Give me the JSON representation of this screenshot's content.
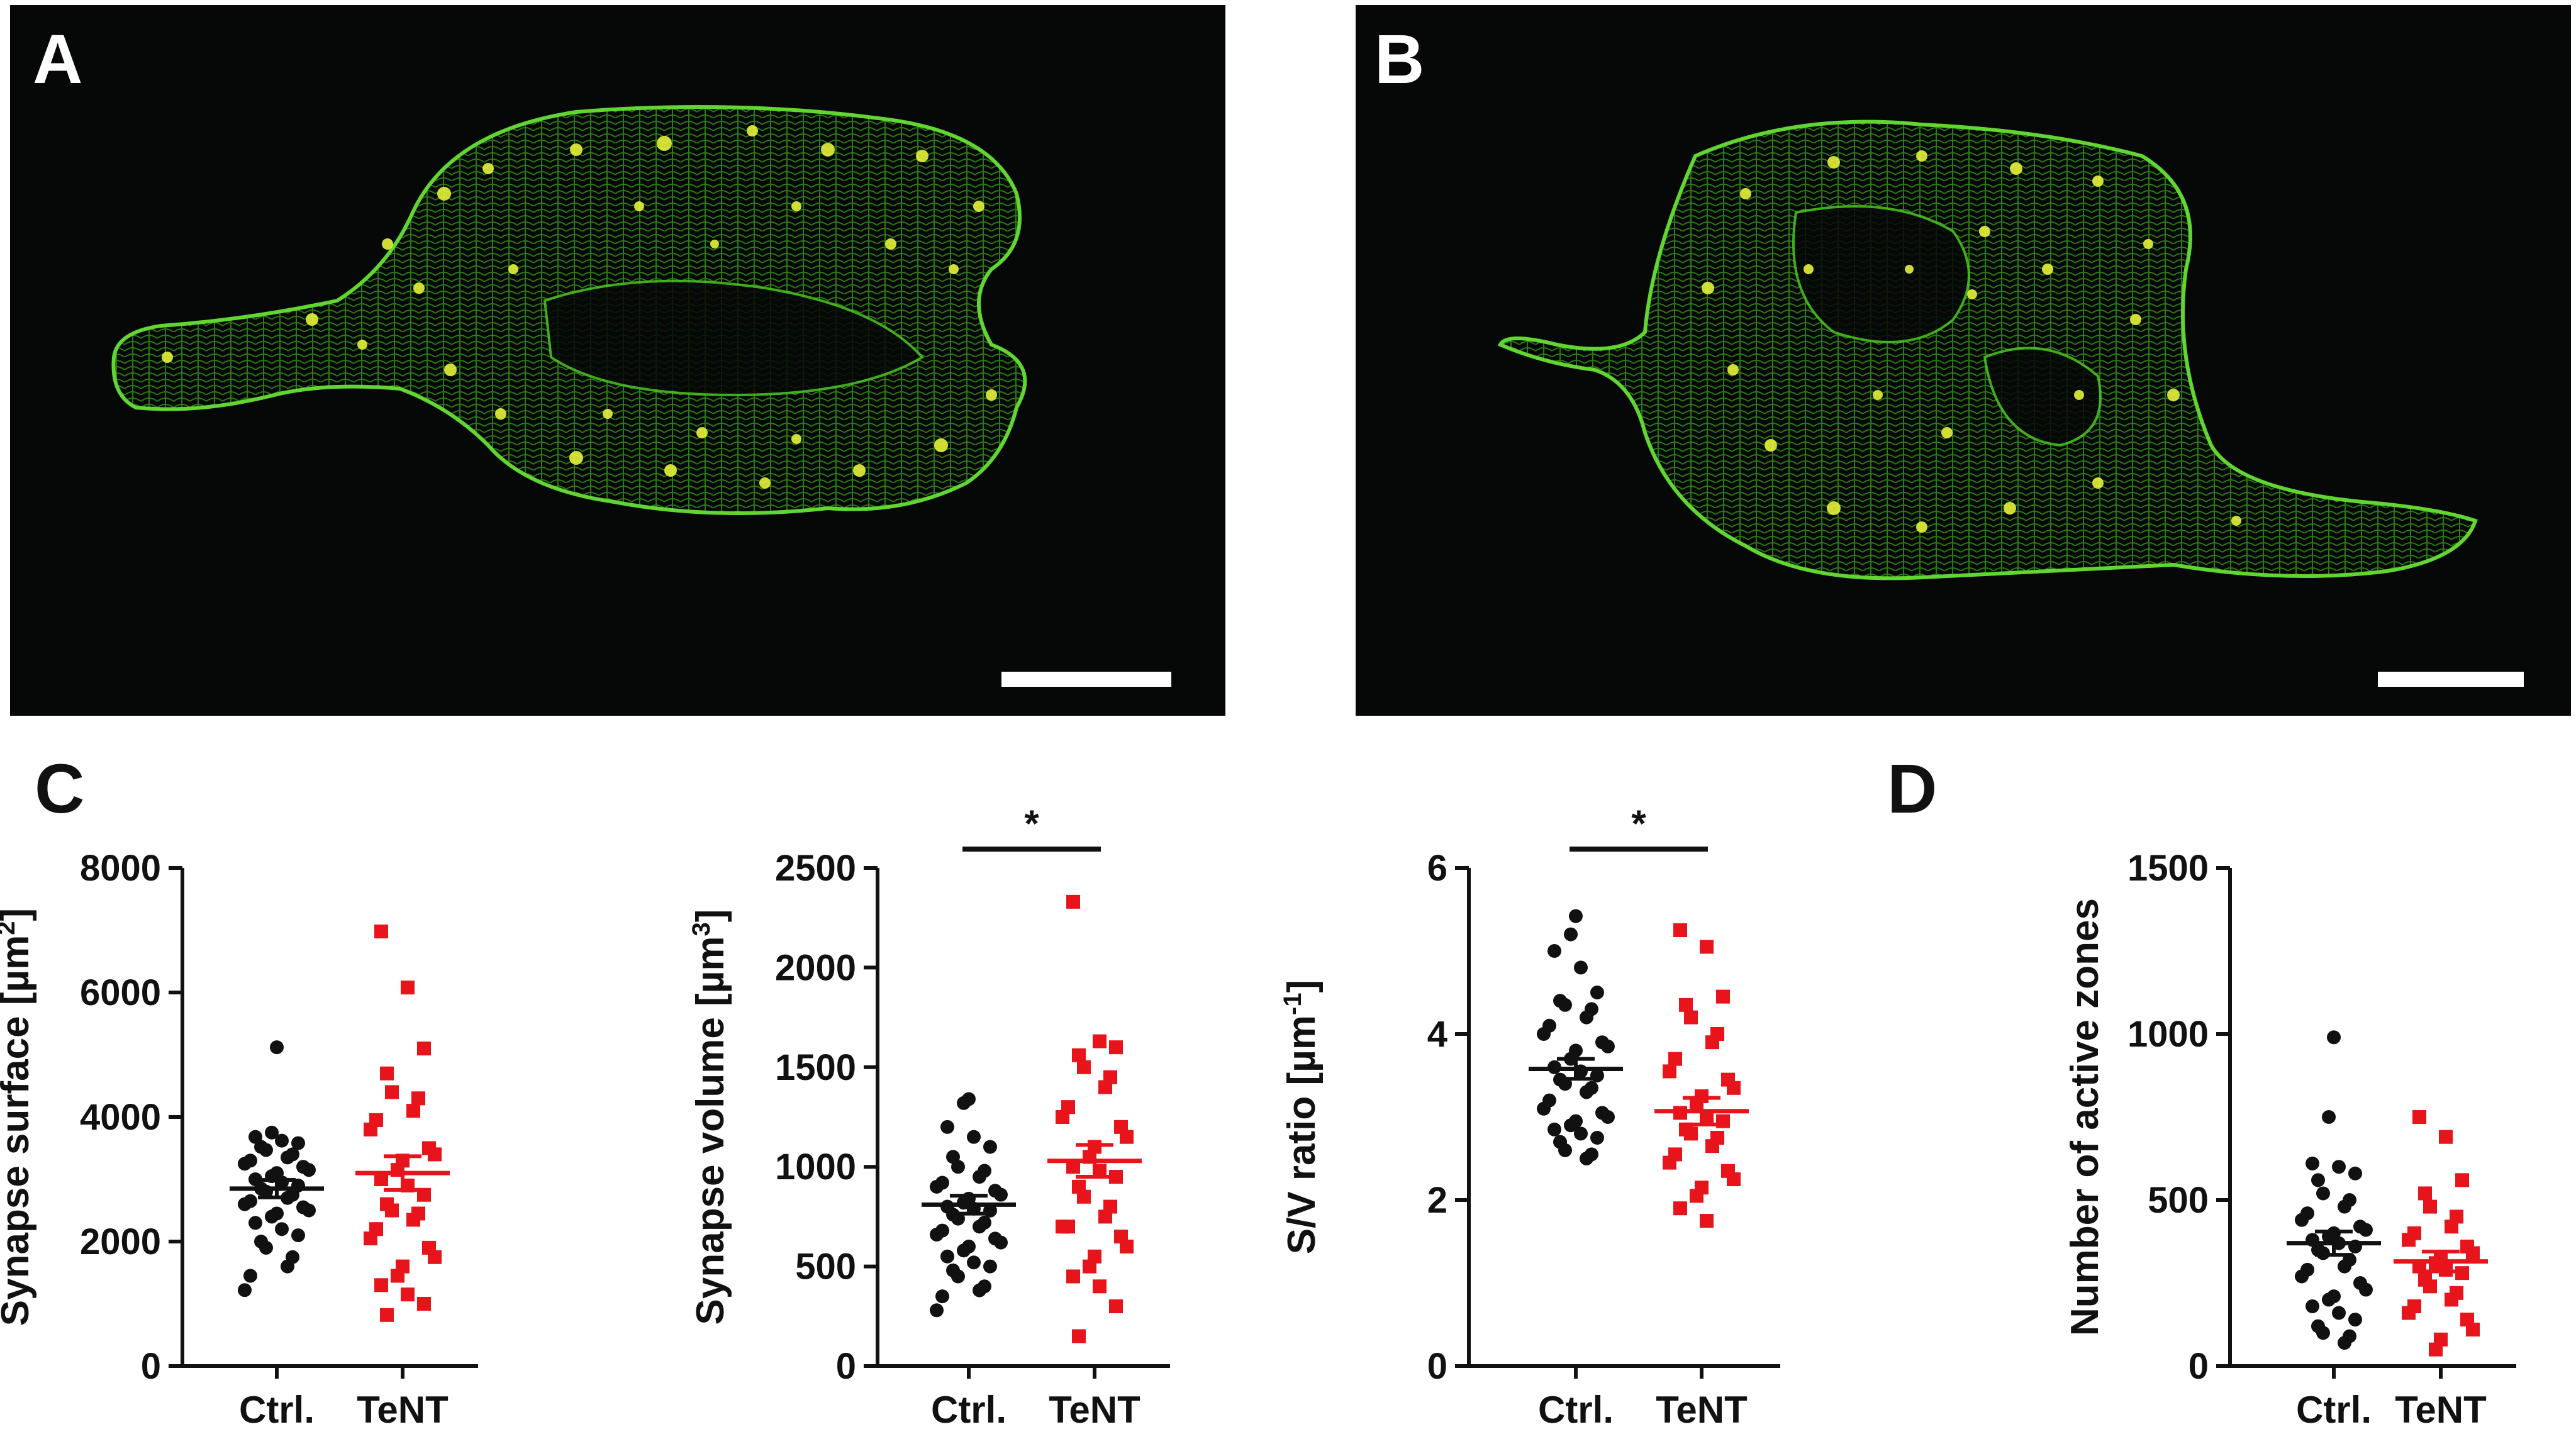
{
  "panels": {
    "A": {
      "letter": "A"
    },
    "B": {
      "letter": "B"
    },
    "C": {
      "letter": "C"
    },
    "D": {
      "letter": "D"
    }
  },
  "colors": {
    "ctrl": "#111111",
    "tent": "#e8141b",
    "membrane": "#5dd62c",
    "puncta": "#e6f23a",
    "background": "#050807"
  },
  "chart_data": [
    {
      "type": "scatter",
      "ylabel": "Synapse surface [µm²]",
      "ylabel_main": "Synapse surface [µm",
      "ylabel_sup": "2",
      "ylabel_end": "]",
      "ylim": [
        0,
        8000
      ],
      "yticks": [
        0,
        2000,
        4000,
        6000,
        8000
      ],
      "categories": [
        "Ctrl.",
        "TeNT"
      ],
      "significance": "",
      "series": [
        {
          "name": "Ctrl.",
          "marker": "circle",
          "mean": 2850,
          "sem": 140,
          "values": [
            5120,
            3750,
            3680,
            3620,
            3580,
            3520,
            3470,
            3400,
            3350,
            3300,
            3250,
            3200,
            3150,
            3100,
            3050,
            3000,
            2950,
            2900,
            2850,
            2800,
            2750,
            2700,
            2650,
            2600,
            2550,
            2500,
            2450,
            2400,
            2300,
            2200,
            2100,
            2000,
            1900,
            1750,
            1600,
            1450,
            1220
          ]
        },
        {
          "name": "TeNT",
          "marker": "square",
          "mean": 3100,
          "sem": 270,
          "values": [
            6980,
            6080,
            5100,
            4700,
            4400,
            4300,
            4100,
            3950,
            3800,
            3500,
            3400,
            3300,
            3150,
            3000,
            2900,
            2750,
            2600,
            2500,
            2450,
            2350,
            2200,
            2050,
            1900,
            1750,
            1600,
            1450,
            1300,
            1150,
            1000,
            820
          ]
        }
      ]
    },
    {
      "type": "scatter",
      "ylabel": "Synapse volume [µm³]",
      "ylabel_main": "Synapse volume [µm",
      "ylabel_sup": "3",
      "ylabel_end": "]",
      "ylim": [
        0,
        2500
      ],
      "yticks": [
        0,
        500,
        1000,
        1500,
        2000,
        2500
      ],
      "categories": [
        "Ctrl.",
        "TeNT"
      ],
      "significance": "*",
      "series": [
        {
          "name": "Ctrl.",
          "marker": "circle",
          "mean": 810,
          "sem": 45,
          "values": [
            1340,
            1320,
            1200,
            1150,
            1100,
            1050,
            1000,
            980,
            950,
            920,
            900,
            880,
            860,
            840,
            820,
            800,
            790,
            780,
            760,
            740,
            720,
            700,
            680,
            660,
            640,
            620,
            600,
            580,
            550,
            520,
            500,
            480,
            450,
            400,
            380,
            350,
            280
          ]
        },
        {
          "name": "TeNT",
          "marker": "square",
          "mean": 1030,
          "sem": 80,
          "values": [
            2330,
            1630,
            1600,
            1560,
            1500,
            1450,
            1400,
            1300,
            1250,
            1200,
            1150,
            1100,
            1050,
            1000,
            980,
            950,
            900,
            850,
            800,
            750,
            700,
            700,
            650,
            600,
            550,
            500,
            450,
            400,
            300,
            150
          ]
        }
      ]
    },
    {
      "type": "scatter",
      "ylabel": "S/V ratio [µm⁻¹]",
      "ylabel_main": "S/V ratio [µm",
      "ylabel_sup": "-1",
      "ylabel_end": "]",
      "ylim": [
        0,
        6
      ],
      "yticks": [
        0,
        2,
        4,
        6
      ],
      "categories": [
        "Ctrl.",
        "TeNT"
      ],
      "significance": "*",
      "series": [
        {
          "name": "Ctrl.",
          "marker": "circle",
          "mean": 3.58,
          "sem": 0.12,
          "values": [
            5.42,
            5.2,
            5.0,
            4.8,
            4.5,
            4.4,
            4.35,
            4.3,
            4.2,
            4.1,
            4.0,
            3.9,
            3.85,
            3.8,
            3.7,
            3.6,
            3.55,
            3.5,
            3.45,
            3.4,
            3.35,
            3.3,
            3.2,
            3.1,
            3.05,
            3.0,
            2.95,
            2.9,
            2.85,
            2.8,
            2.75,
            2.7,
            2.6,
            2.55,
            2.5
          ]
        },
        {
          "name": "TeNT",
          "marker": "square",
          "mean": 3.07,
          "sem": 0.16,
          "values": [
            5.25,
            5.05,
            4.45,
            4.35,
            4.2,
            4.0,
            3.9,
            3.7,
            3.55,
            3.45,
            3.35,
            3.25,
            3.15,
            3.05,
            3.0,
            2.95,
            2.85,
            2.8,
            2.75,
            2.65,
            2.55,
            2.45,
            2.35,
            2.25,
            2.15,
            2.05,
            1.9,
            1.75
          ]
        }
      ]
    },
    {
      "type": "scatter",
      "ylabel": "Number of active zones",
      "ylabel_main": "Number of active zones",
      "ylabel_sup": "",
      "ylabel_end": "",
      "ylim": [
        0,
        1500
      ],
      "yticks": [
        0,
        500,
        1000,
        1500
      ],
      "categories": [
        "Ctrl.",
        "TeNT"
      ],
      "significance": "",
      "series": [
        {
          "name": "Ctrl.",
          "marker": "circle",
          "mean": 370,
          "sem": 35,
          "values": [
            990,
            750,
            610,
            600,
            580,
            560,
            520,
            500,
            480,
            460,
            440,
            420,
            410,
            400,
            390,
            380,
            370,
            360,
            350,
            340,
            320,
            300,
            290,
            270,
            250,
            230,
            210,
            200,
            180,
            160,
            140,
            120,
            100,
            90,
            70
          ]
        },
        {
          "name": "TeNT",
          "marker": "square",
          "mean": 315,
          "sem": 30,
          "values": [
            750,
            690,
            560,
            520,
            480,
            450,
            420,
            400,
            380,
            360,
            340,
            320,
            310,
            300,
            290,
            280,
            260,
            240,
            220,
            200,
            180,
            160,
            140,
            110,
            80,
            50
          ]
        }
      ]
    }
  ]
}
